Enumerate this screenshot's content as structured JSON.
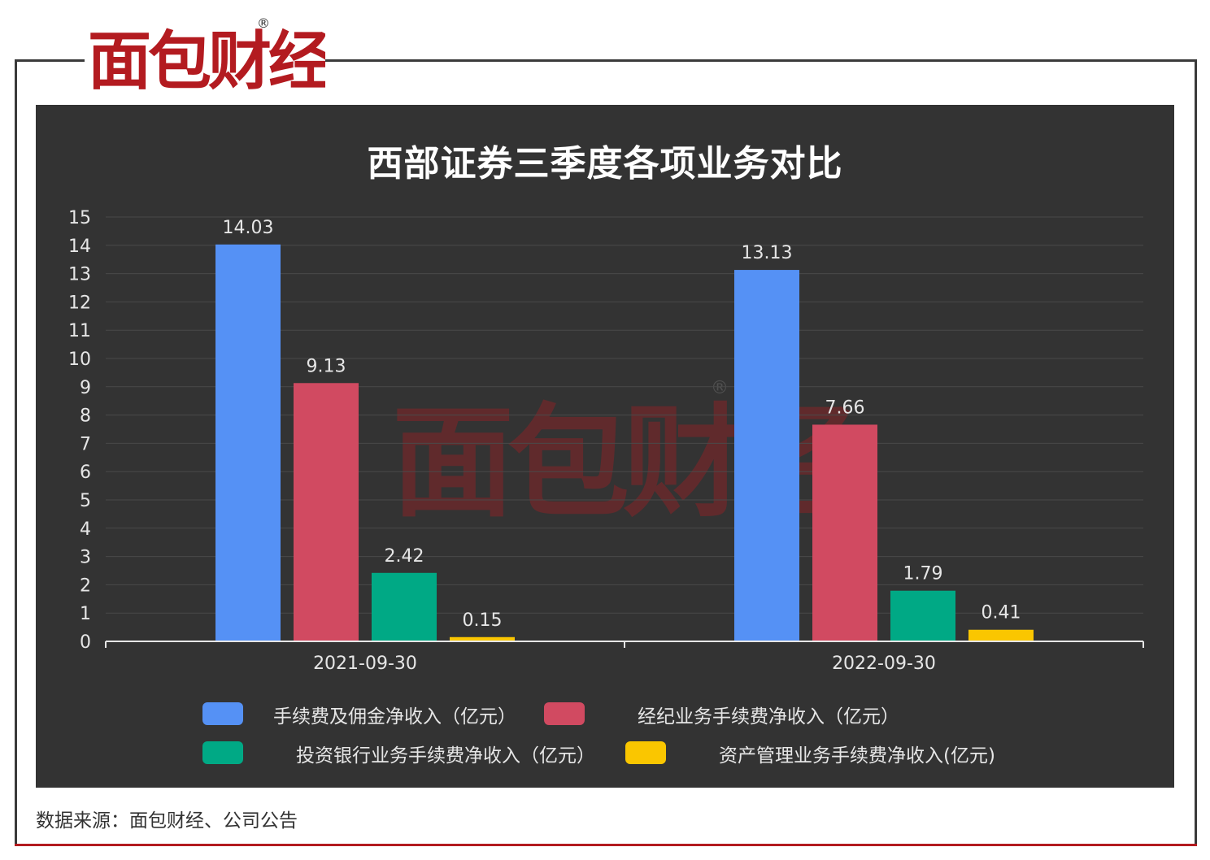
{
  "brand": {
    "logo_text": "面包财经",
    "registered_mark": "®",
    "red": "#b31b20",
    "dark": "#2b2b2b"
  },
  "chart_data": {
    "type": "bar",
    "title": "西部证券三季度各项业务对比",
    "categories": [
      "2021-09-30",
      "2022-09-30"
    ],
    "series": [
      {
        "name": "手续费及佣金净收入（亿元）",
        "values": [
          14.03,
          13.13
        ],
        "labels": [
          "14.03",
          "13.13"
        ],
        "color": "#5591f5"
      },
      {
        "name": "经纪业务手续费净收入（亿元）",
        "values": [
          9.13,
          7.66
        ],
        "labels": [
          "9.13",
          "7.66"
        ],
        "color": "#d14a61"
      },
      {
        "name": "投资银行业务手续费净收入（亿元）",
        "values": [
          2.42,
          1.79
        ],
        "labels": [
          "2.42",
          "1.79"
        ],
        "color": "#00a985"
      },
      {
        "name": "资产管理业务手续费净收入(亿元)",
        "values": [
          0.15,
          0.41
        ],
        "labels": [
          "0.15",
          "0.41"
        ],
        "color": "#fac600"
      }
    ],
    "ylim": [
      0,
      15
    ],
    "yticks": [
      "0",
      "1",
      "2",
      "3",
      "4",
      "5",
      "6",
      "7",
      "8",
      "9",
      "10",
      "11",
      "12",
      "13",
      "14",
      "15"
    ],
    "grid": true,
    "legend_position": "bottom",
    "background": "#333333"
  },
  "source_text": "数据来源：面包财经、公司公告"
}
